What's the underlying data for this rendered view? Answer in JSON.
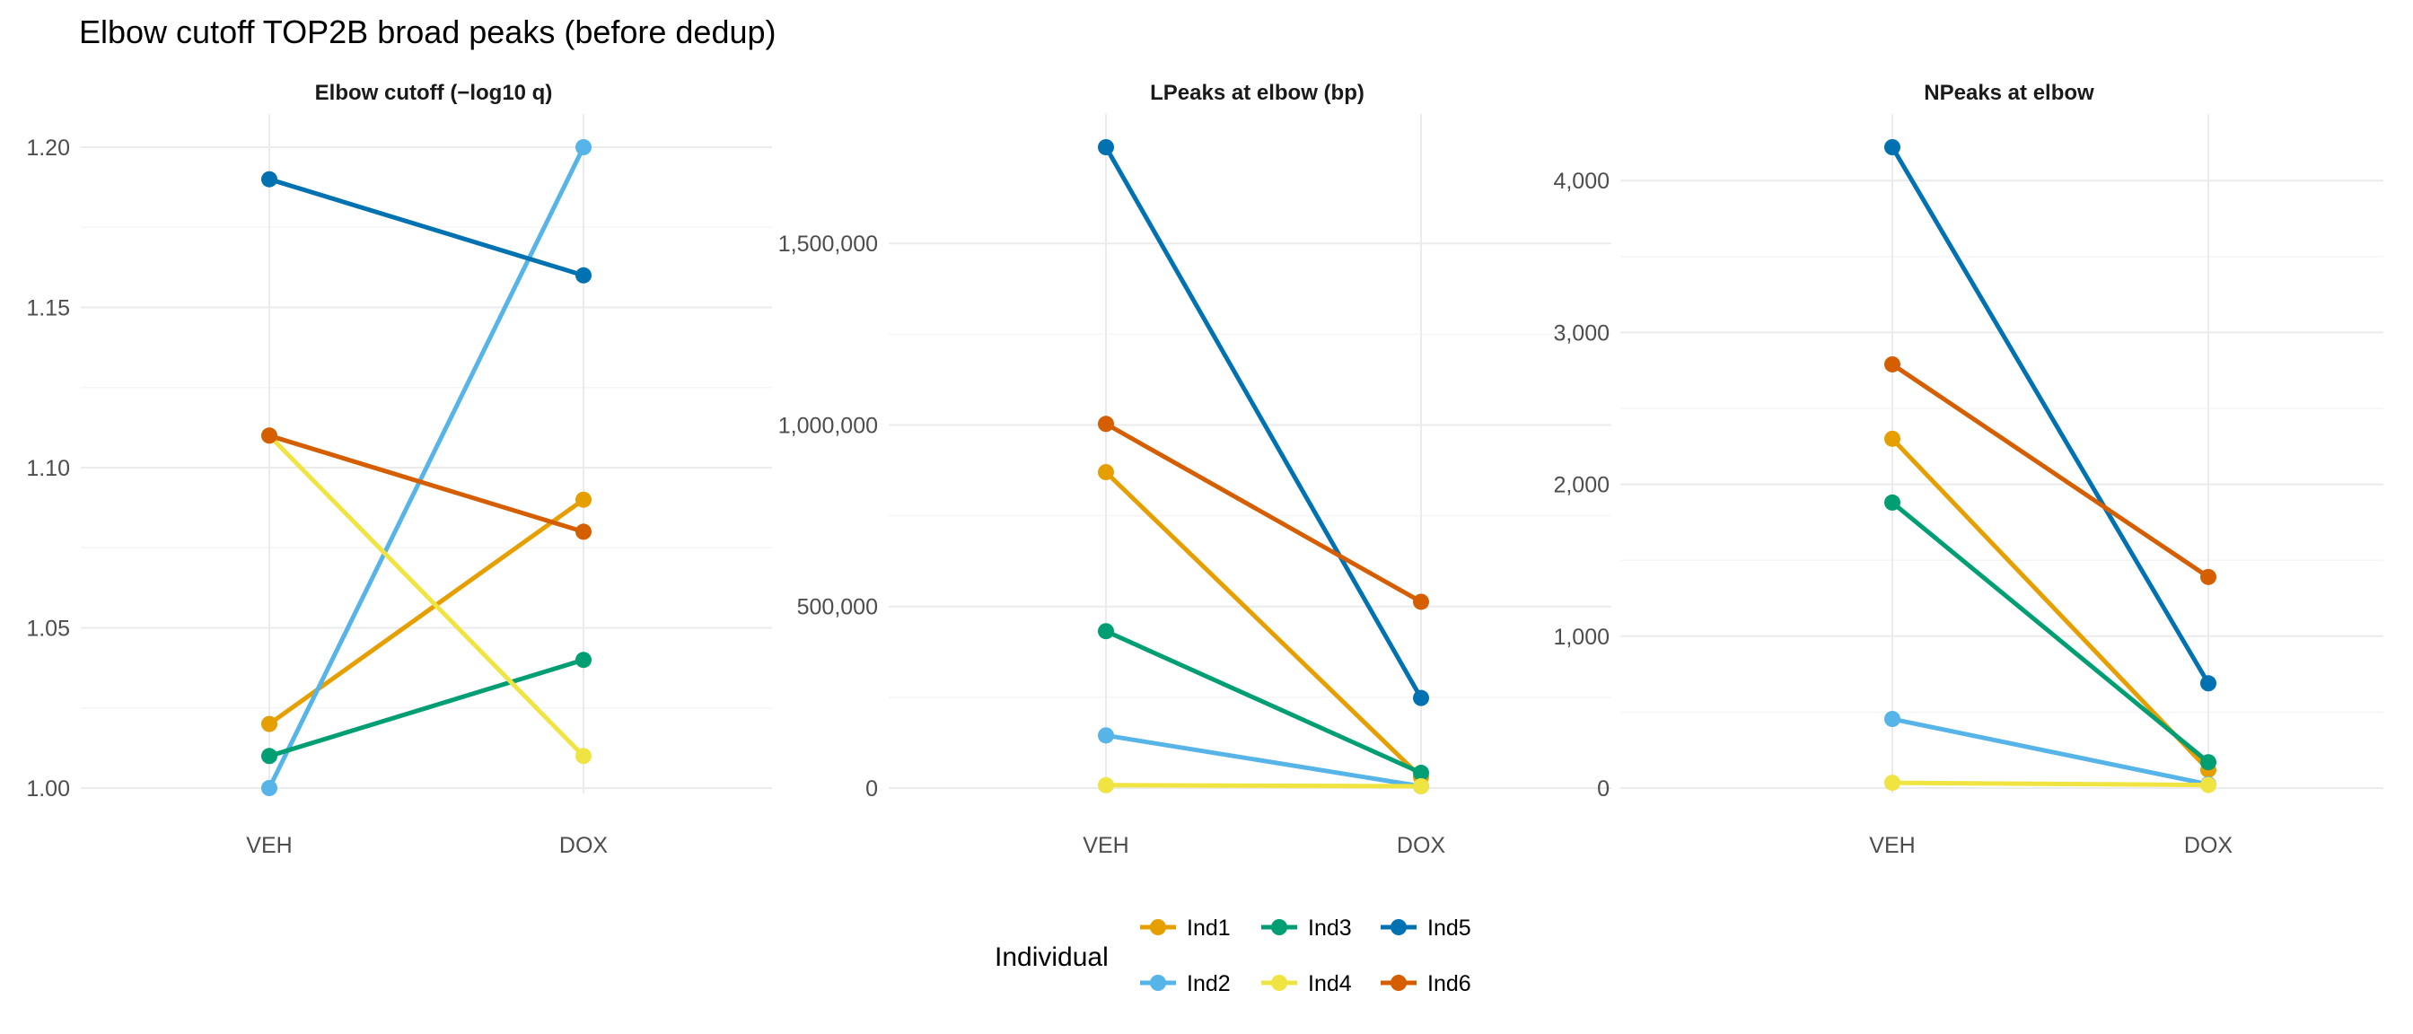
{
  "title": "Elbow cutoff TOP2B broad peaks (before dedup)",
  "colors": {
    "Ind1": "#E69F00",
    "Ind2": "#56B4E9",
    "Ind3": "#009E73",
    "Ind4": "#F0E442",
    "Ind5": "#0072B2",
    "Ind6": "#D55E00",
    "grid_major": "#ebebeb",
    "grid_minor": "#f5f5f5"
  },
  "legend": {
    "title": "Individual",
    "placement": "bottom",
    "entries": [
      "Ind1",
      "Ind3",
      "Ind5",
      "Ind2",
      "Ind4",
      "Ind6"
    ]
  },
  "chart_data": [
    {
      "type": "line",
      "title": "Elbow cutoff (−log10 q)",
      "categories": [
        "VEH",
        "DOX"
      ],
      "ylim": [
        1.0,
        1.2
      ],
      "yticks": [
        1.0,
        1.05,
        1.1,
        1.15,
        1.2
      ],
      "ytick_labels": [
        "1.00",
        "1.05",
        "1.10",
        "1.15",
        "1.20"
      ],
      "grid": true,
      "series": [
        {
          "name": "Ind1",
          "values": [
            1.02,
            1.09
          ]
        },
        {
          "name": "Ind2",
          "values": [
            1.0,
            1.2
          ]
        },
        {
          "name": "Ind3",
          "values": [
            1.01,
            1.04
          ]
        },
        {
          "name": "Ind4",
          "values": [
            1.11,
            1.01
          ]
        },
        {
          "name": "Ind5",
          "values": [
            1.19,
            1.16
          ]
        },
        {
          "name": "Ind6",
          "values": [
            1.11,
            1.08
          ]
        }
      ]
    },
    {
      "type": "line",
      "title": "LPeaks at elbow (bp)",
      "categories": [
        "VEH",
        "DOX"
      ],
      "ylim": [
        0,
        1765000
      ],
      "yticks": [
        0,
        500000,
        1000000,
        1500000
      ],
      "ytick_labels": [
        "0",
        "500,000",
        "1,000,000",
        "1,500,000"
      ],
      "grid": true,
      "series": [
        {
          "name": "Ind1",
          "values": [
            870000,
            30000
          ]
        },
        {
          "name": "Ind2",
          "values": [
            145000,
            5000
          ]
        },
        {
          "name": "Ind3",
          "values": [
            432000,
            42000
          ]
        },
        {
          "name": "Ind4",
          "values": [
            8000,
            5000
          ]
        },
        {
          "name": "Ind5",
          "values": [
            1765000,
            248000
          ]
        },
        {
          "name": "Ind6",
          "values": [
            1003000,
            513000
          ]
        }
      ]
    },
    {
      "type": "line",
      "title": "NPeaks at elbow",
      "categories": [
        "VEH",
        "DOX"
      ],
      "ylim": [
        0,
        4220
      ],
      "yticks": [
        0,
        1000,
        2000,
        3000,
        4000
      ],
      "ytick_labels": [
        "0",
        "1,000",
        "2,000",
        "3,000",
        "4,000"
      ],
      "grid": true,
      "series": [
        {
          "name": "Ind1",
          "values": [
            2300,
            120
          ]
        },
        {
          "name": "Ind2",
          "values": [
            455,
            25
          ]
        },
        {
          "name": "Ind3",
          "values": [
            1880,
            170
          ]
        },
        {
          "name": "Ind4",
          "values": [
            35,
            20
          ]
        },
        {
          "name": "Ind5",
          "values": [
            4220,
            690
          ]
        },
        {
          "name": "Ind6",
          "values": [
            2790,
            1390
          ]
        }
      ]
    }
  ]
}
